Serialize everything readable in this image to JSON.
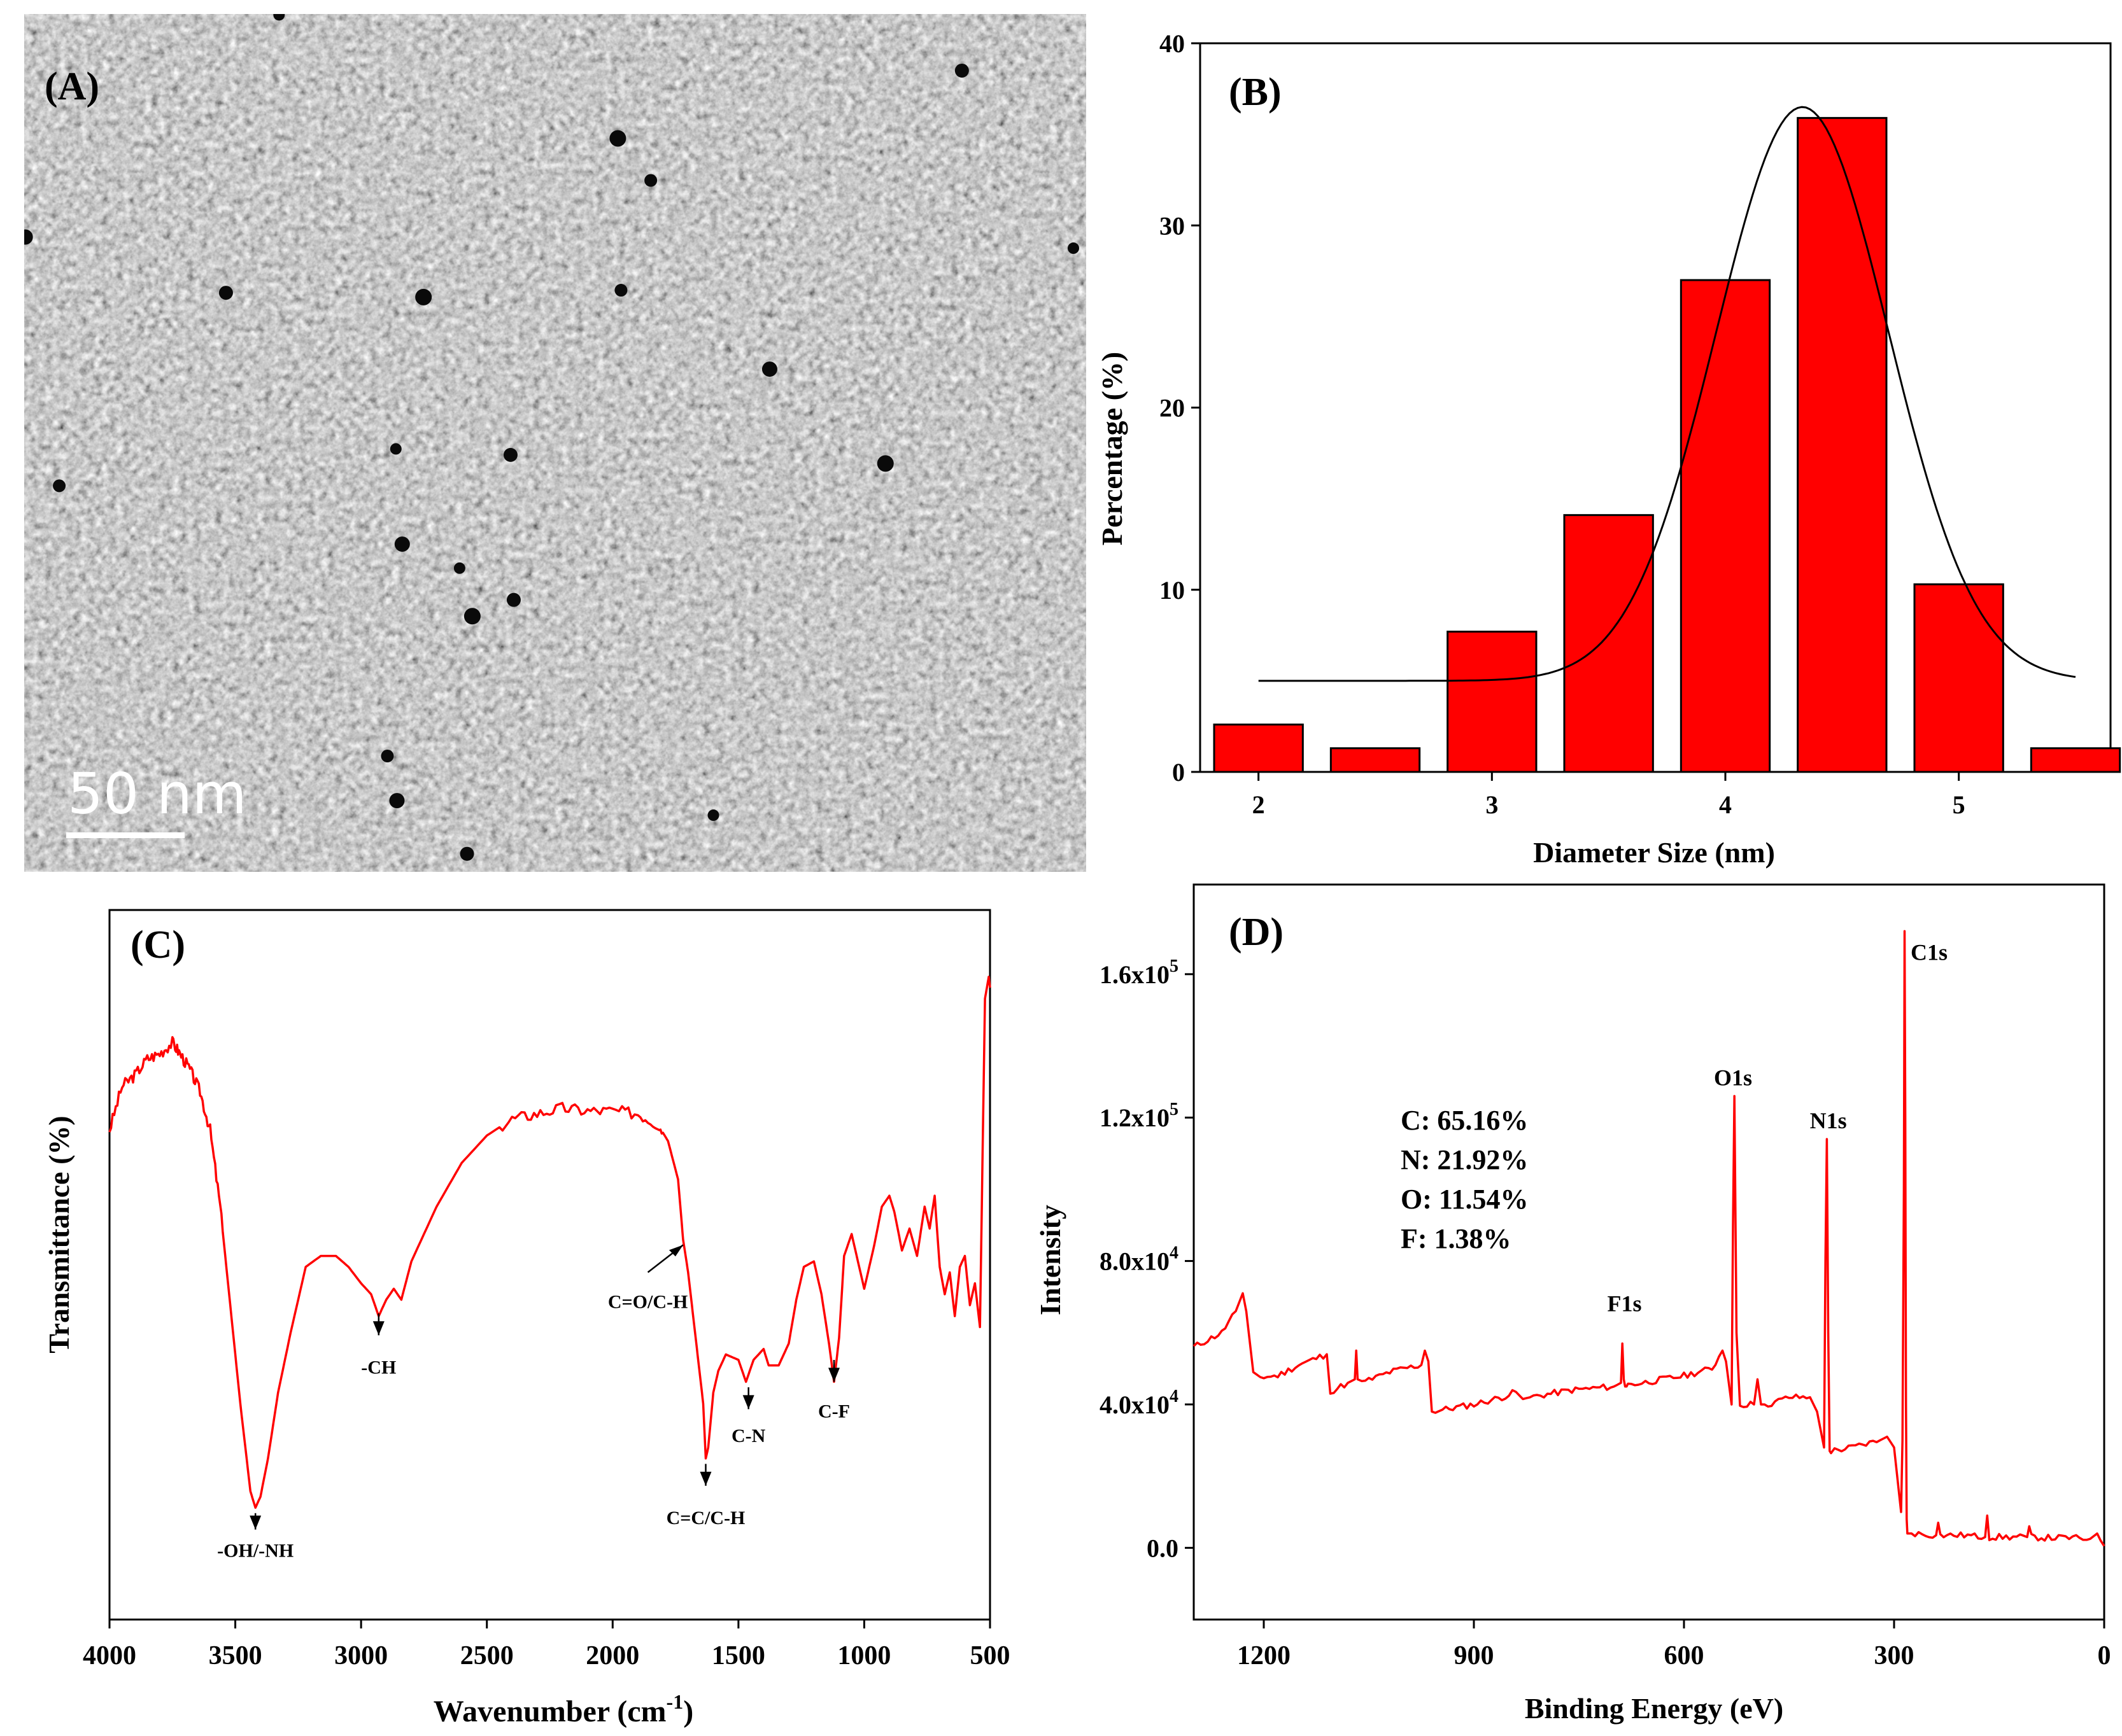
{
  "figure": {
    "panel_a": {
      "label": "(A)",
      "scale_bar": "50 nm",
      "particles": [
        [
          0.24,
          0.001
        ],
        [
          0.883,
          0.066
        ],
        [
          0.559,
          0.145
        ],
        [
          0.59,
          0.194
        ],
        [
          0.001,
          0.26
        ],
        [
          0.988,
          0.273
        ],
        [
          0.19,
          0.325
        ],
        [
          0.376,
          0.33
        ],
        [
          0.562,
          0.322
        ],
        [
          0.702,
          0.414
        ],
        [
          0.35,
          0.507
        ],
        [
          0.458,
          0.514
        ],
        [
          0.811,
          0.524
        ],
        [
          0.033,
          0.55
        ],
        [
          0.356,
          0.618
        ],
        [
          0.41,
          0.646
        ],
        [
          0.461,
          0.683
        ],
        [
          0.422,
          0.702
        ],
        [
          0.342,
          0.865
        ],
        [
          0.351,
          0.917
        ],
        [
          0.649,
          0.934
        ],
        [
          0.417,
          0.979
        ]
      ]
    }
  },
  "chart_data": [
    {
      "panel": "(B)",
      "type": "bar",
      "xlabel": "Diameter Size (nm)",
      "ylabel": "Percentage (%)",
      "xlim": [
        1.75,
        5.65
      ],
      "ylim": [
        0,
        40
      ],
      "xticks": [
        "2",
        "3",
        "4",
        "5"
      ],
      "xtick_values": [
        2,
        3,
        4,
        5
      ],
      "yticks": [
        "0",
        "10",
        "20",
        "30",
        "40"
      ],
      "ytick_values": [
        0,
        10,
        20,
        30,
        40
      ],
      "bin_width": 0.5,
      "bins": [
        2.0,
        2.5,
        3.0,
        3.5,
        4.0,
        4.5,
        5.0,
        5.5
      ],
      "values": [
        2.6,
        1.3,
        7.7,
        14.1,
        27.0,
        35.9,
        10.3,
        1.3
      ],
      "bar_color": "#ff0000",
      "fit": {
        "type": "gaussian",
        "baseline": 5.0,
        "amplitude": 31.5,
        "center": 4.33,
        "sigma": 0.37,
        "x_range": [
          2.0,
          5.5
        ],
        "color": "#000000"
      }
    },
    {
      "panel": "(C)",
      "type": "line",
      "xlabel": "Wavenumber (cm",
      "xlabel_sup": "-1",
      "xlabel_end": ")",
      "ylabel": "Transmittance (%)",
      "xlim": [
        4000,
        500
      ],
      "ylim": [
        0,
        100
      ],
      "xticks": [
        "4000",
        "3500",
        "3000",
        "2500",
        "2000",
        "1500",
        "1000",
        "500"
      ],
      "xtick_values": [
        4000,
        3500,
        3000,
        2500,
        2000,
        1500,
        1000,
        500
      ],
      "line_color": "#ff0000",
      "x": [
        4000,
        3950,
        3900,
        3850,
        3800,
        3750,
        3720,
        3680,
        3640,
        3600,
        3560,
        3520,
        3480,
        3440,
        3420,
        3400,
        3370,
        3330,
        3280,
        3220,
        3160,
        3100,
        3050,
        3000,
        2960,
        2930,
        2900,
        2870,
        2840,
        2800,
        2700,
        2600,
        2500,
        2400,
        2300,
        2200,
        2100,
        2000,
        1900,
        1820,
        1780,
        1740,
        1720,
        1700,
        1680,
        1660,
        1640,
        1630,
        1620,
        1600,
        1580,
        1550,
        1500,
        1470,
        1440,
        1400,
        1380,
        1340,
        1300,
        1270,
        1240,
        1200,
        1170,
        1140,
        1120,
        1100,
        1080,
        1050,
        1000,
        960,
        930,
        900,
        880,
        850,
        820,
        790,
        760,
        740,
        720,
        700,
        680,
        660,
        640,
        620,
        600,
        580,
        560,
        540,
        520,
        505,
        500
      ],
      "y": [
        72,
        80,
        82,
        85,
        86,
        88,
        86,
        83,
        79,
        72,
        58,
        40,
        22,
        6,
        3,
        5,
        12,
        24,
        35,
        47,
        49,
        49,
        47,
        44,
        42,
        38,
        41,
        43,
        41,
        48,
        58,
        66,
        71,
        74,
        75,
        76,
        75.5,
        75.5,
        75,
        73,
        70,
        63,
        52,
        46,
        38,
        30,
        22,
        12,
        14,
        24,
        28,
        31,
        30,
        26,
        30,
        32,
        29,
        29,
        33,
        41,
        47,
        48,
        42,
        33,
        26,
        34,
        49,
        53,
        43,
        51,
        58,
        60,
        57,
        50,
        54,
        49,
        58,
        54,
        60,
        47,
        42,
        46,
        38,
        47,
        49,
        40,
        44,
        36,
        96,
        100,
        98
      ],
      "annotations": [
        {
          "text": "-OH/-NH",
          "x": 3420,
          "label_y": -6,
          "arrow_from": -1,
          "arrow_to": 2
        },
        {
          "text": "-CH",
          "x": 2930,
          "label_y": 27.5,
          "arrow_from": 34.5,
          "arrow_to": 38.5
        },
        {
          "text": "C=O/C-H",
          "x": 1860,
          "label_y": 39.5,
          "arrow_from": 46,
          "arrow_to": 51,
          "diagonal_to_x": 1720
        },
        {
          "text": "C=C/C-H",
          "x": 1630,
          "label_y": 0,
          "arrow_from": 7,
          "arrow_to": 11
        },
        {
          "text": "C-N",
          "x": 1460,
          "label_y": 15,
          "arrow_from": 21,
          "arrow_to": 25
        },
        {
          "text": "C-F",
          "x": 1120,
          "label_y": 19.5,
          "arrow_from": 26,
          "arrow_to": 30
        }
      ]
    },
    {
      "panel": "(D)",
      "type": "line",
      "xlabel": "Binding Energy (eV)",
      "ylabel": "Intensity",
      "xlim": [
        1300,
        0
      ],
      "ylim": [
        -20000,
        185000
      ],
      "xticks": [
        "1200",
        "900",
        "600",
        "300",
        "0"
      ],
      "xtick_values": [
        1200,
        900,
        600,
        300,
        0
      ],
      "yticks": [
        "0.0",
        "4.0x10",
        "8.0x10",
        "1.2x10",
        "1.6x10"
      ],
      "ytick_sups": [
        "",
        "4",
        "4",
        "5",
        "5"
      ],
      "ytick_values": [
        0,
        40000,
        80000,
        120000,
        160000
      ],
      "line_color": "#ff0000",
      "x": [
        1300,
        1280,
        1260,
        1240,
        1230,
        1225,
        1215,
        1210,
        1180,
        1150,
        1110,
        1105,
        1100,
        1080,
        1070,
        1068,
        1066,
        1060,
        1020,
        1000,
        975,
        970,
        965,
        960,
        900,
        860,
        840,
        830,
        820,
        760,
        700,
        690,
        688,
        686,
        684,
        682,
        680,
        660,
        600,
        560,
        545,
        540,
        532,
        530,
        528,
        525,
        520,
        500,
        495,
        490,
        480,
        450,
        420,
        410,
        400,
        398,
        396,
        394,
        392,
        390,
        360,
        320,
        310,
        300,
        290,
        288,
        286,
        285,
        284,
        283,
        282,
        281,
        280,
        270,
        240,
        237,
        234,
        200,
        170,
        167,
        164,
        150,
        110,
        107,
        104,
        80,
        50,
        20,
        10,
        5,
        0
      ],
      "y": [
        56000,
        58000,
        60000,
        66000,
        71000,
        66000,
        49000,
        47500,
        48000,
        51000,
        54000,
        43000,
        44000,
        46000,
        47000,
        55000,
        47000,
        46000,
        49000,
        50000,
        51000,
        55000,
        52000,
        38000,
        40000,
        42000,
        43500,
        41500,
        42000,
        44000,
        45000,
        46000,
        57000,
        47000,
        45000,
        45000,
        45500,
        46000,
        48000,
        50000,
        55000,
        52000,
        40000,
        90000,
        126000,
        60000,
        40000,
        40000,
        47000,
        40000,
        40000,
        42000,
        42000,
        38000,
        28000,
        80000,
        114000,
        60000,
        27000,
        27000,
        28000,
        30000,
        31000,
        28000,
        10000,
        30000,
        100000,
        172000,
        120000,
        40000,
        8000,
        4000,
        4000,
        4000,
        3500,
        7000,
        3500,
        3500,
        3000,
        9000,
        3000,
        3000,
        3000,
        6000,
        3000,
        2800,
        2800,
        2500,
        4000,
        2000,
        500
      ],
      "peak_labels": [
        {
          "text": "C1s",
          "x": 250,
          "y": 164000
        },
        {
          "text": "N1s",
          "x": 394,
          "y": 117000
        },
        {
          "text": "O1s",
          "x": 530,
          "y": 129000
        },
        {
          "text": "F1s",
          "x": 685,
          "y": 66000
        }
      ],
      "composition": [
        "C: 65.16%",
        "N: 21.92%",
        "O: 11.54%",
        "F: 1.38%"
      ]
    }
  ],
  "panel_labels": {
    "b": "(B)",
    "c": "(C)",
    "d": "(D)"
  }
}
